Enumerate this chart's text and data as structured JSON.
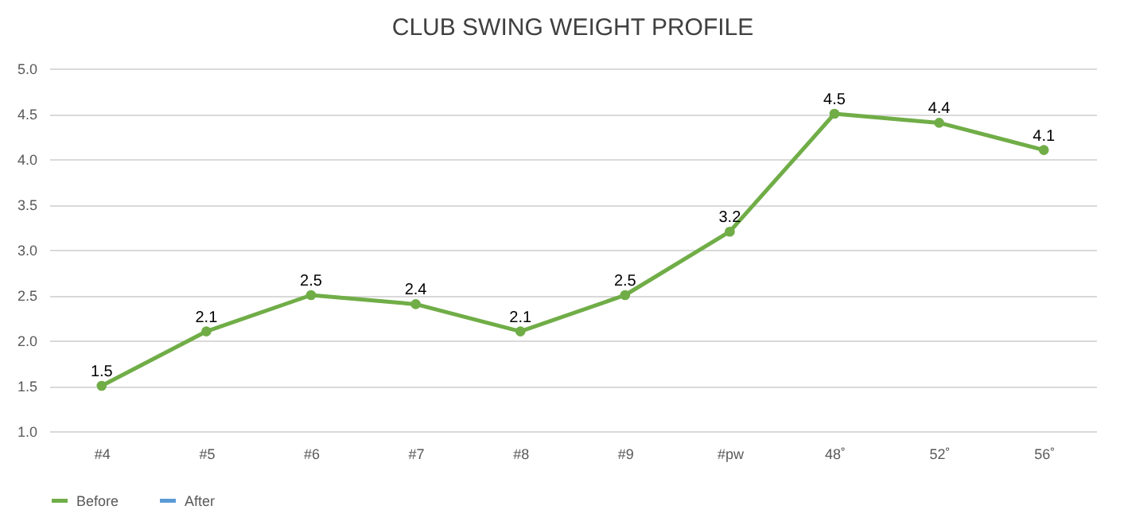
{
  "chart_data": {
    "type": "line",
    "title": "CLUB SWING WEIGHT PROFILE",
    "categories": [
      "#4",
      "#5",
      "#6",
      "#7",
      "#8",
      "#9",
      "#pw",
      "48˚",
      "52˚",
      "56˚"
    ],
    "series": [
      {
        "name": "Before",
        "color": "#70ad47",
        "values": [
          1.5,
          2.1,
          2.5,
          2.4,
          2.1,
          2.5,
          3.2,
          4.5,
          4.4,
          4.1
        ]
      },
      {
        "name": "After",
        "color": "#5b9bd5",
        "values": [
          null,
          null,
          null,
          null,
          null,
          null,
          null,
          null,
          null,
          null
        ]
      }
    ],
    "ylim": [
      1,
      5
    ],
    "yticks": [
      {
        "value": 1,
        "label": "1.0"
      },
      {
        "value": 1.5,
        "label": "1.5"
      },
      {
        "value": 2,
        "label": "2.0"
      },
      {
        "value": 2.5,
        "label": "2.5"
      },
      {
        "value": 3,
        "label": "3.0"
      },
      {
        "value": 3.5,
        "label": "3.5"
      },
      {
        "value": 4,
        "label": "4.0"
      },
      {
        "value": 4.5,
        "label": "4.5"
      },
      {
        "value": 5,
        "label": "5.0"
      }
    ],
    "grid": "y",
    "legend": "bottom",
    "marker": "circle",
    "line_style": "solid",
    "data_labels": true
  }
}
